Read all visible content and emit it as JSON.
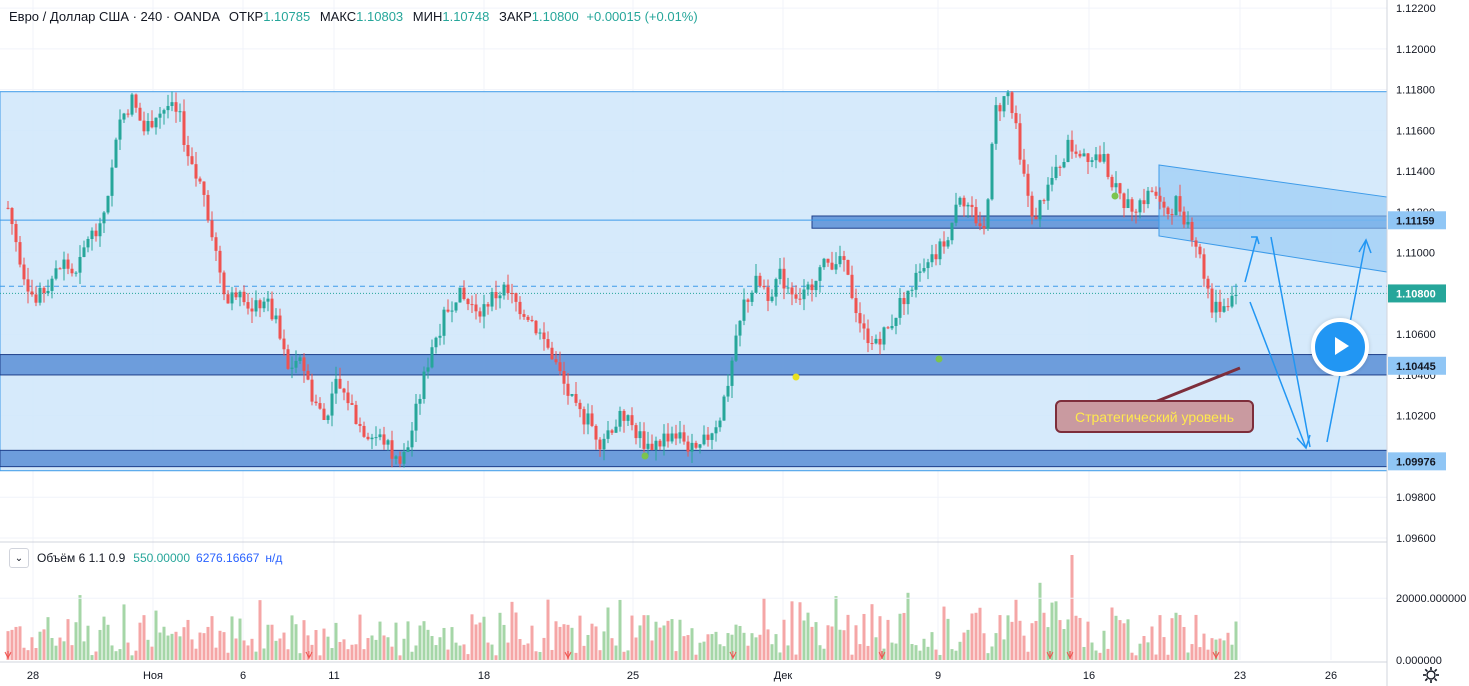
{
  "header": {
    "symbol": "Евро / Доллар США · 240 · OANDA",
    "open_label": "ОТКР",
    "open": "1.10785",
    "high_label": "МАКС",
    "high": "1.10803",
    "low_label": "МИН",
    "low": "1.10748",
    "close_label": "ЗАКР",
    "close": "1.10800",
    "change": "+0.00015 (+0.01%)"
  },
  "volume_header": {
    "title": "Объём 6 1.1 0.9",
    "value_green": "550.00000",
    "value_blue": "6276.16667",
    "na": "н/д"
  },
  "annotation": {
    "text": "Стратегический уровень"
  },
  "colors": {
    "up": "#26a69a",
    "down": "#ef5350",
    "zone": "#cfe6fa",
    "band": "#5b8fd6",
    "accent": "#2196f3",
    "note_bg": "#c99aa0",
    "note_text": "#ffe94d"
  },
  "chart_data": {
    "type": "candlestick",
    "symbol": "EURUSD",
    "timeframe": "240",
    "price_axis": {
      "ticks": [
        "1.12200",
        "1.12000",
        "1.11800",
        "1.11600",
        "1.11400",
        "1.11200",
        "1.11000",
        "1.10800",
        "1.10600",
        "1.10400",
        "1.10200",
        "1.10000",
        "1.09800",
        "1.09600"
      ],
      "ylim": [
        1.0959,
        1.1224
      ],
      "highlighted_labels": [
        "1.11159",
        "1.10800",
        "1.10445",
        "1.09976"
      ]
    },
    "time_axis": {
      "ticks": [
        "28",
        "Ноя",
        "6",
        "11",
        "18",
        "25",
        "Дек",
        "9",
        "16",
        "23",
        "26"
      ]
    },
    "levels": {
      "range_top": 1.1179,
      "range_bottom": 1.0993,
      "resistance_band": [
        1.1112,
        1.1118
      ],
      "support_band_mid": [
        1.104,
        1.105
      ],
      "support_band_low": [
        1.0995,
        1.1003
      ],
      "last_price": 1.108,
      "prev_close_dashed": 1.10835
    },
    "close_path": [
      [
        0,
        1.1122
      ],
      [
        4,
        1.109
      ],
      [
        7,
        1.1075
      ],
      [
        10,
        1.1085
      ],
      [
        14,
        1.1095
      ],
      [
        17,
        1.1088
      ],
      [
        20,
        1.1108
      ],
      [
        23,
        1.111
      ],
      [
        26,
        1.114
      ],
      [
        28,
        1.1165
      ],
      [
        31,
        1.1175
      ],
      [
        34,
        1.116
      ],
      [
        37,
        1.1168
      ],
      [
        40,
        1.1172
      ],
      [
        43,
        1.1165
      ],
      [
        46,
        1.114
      ],
      [
        49,
        1.113
      ],
      [
        52,
        1.11
      ],
      [
        55,
        1.1075
      ],
      [
        58,
        1.1085
      ],
      [
        61,
        1.107
      ],
      [
        64,
        1.1078
      ],
      [
        67,
        1.1065
      ],
      [
        70,
        1.1042
      ],
      [
        73,
        1.105
      ],
      [
        76,
        1.103
      ],
      [
        79,
        1.1018
      ],
      [
        82,
        1.1035
      ],
      [
        85,
        1.1028
      ],
      [
        88,
        1.1015
      ],
      [
        91,
        1.101
      ],
      [
        94,
        1.1008
      ],
      [
        97,
        1.0998
      ],
      [
        100,
        1.1005
      ],
      [
        103,
        1.103
      ],
      [
        106,
        1.1055
      ],
      [
        109,
        1.1068
      ],
      [
        112,
        1.108
      ],
      [
        115,
        1.1075
      ],
      [
        118,
        1.1072
      ],
      [
        121,
        1.1078
      ],
      [
        124,
        1.1082
      ],
      [
        127,
        1.1075
      ],
      [
        130,
        1.107
      ],
      [
        133,
        1.106
      ],
      [
        136,
        1.105
      ],
      [
        139,
        1.1035
      ],
      [
        142,
        1.1022
      ],
      [
        145,
        1.1018
      ],
      [
        148,
        1.1008
      ],
      [
        151,
        1.1015
      ],
      [
        154,
        1.102
      ],
      [
        157,
        1.1012
      ],
      [
        160,
        1.1005
      ],
      [
        163,
        1.1008
      ],
      [
        166,
        1.1012
      ],
      [
        169,
        1.1008
      ],
      [
        172,
        1.1
      ],
      [
        175,
        1.101
      ],
      [
        178,
        1.102
      ],
      [
        181,
        1.1045
      ],
      [
        184,
        1.1075
      ],
      [
        187,
        1.1085
      ],
      [
        190,
        1.108
      ],
      [
        193,
        1.1088
      ],
      [
        196,
        1.1082
      ],
      [
        199,
        1.1078
      ],
      [
        202,
        1.109
      ],
      [
        205,
        1.1095
      ],
      [
        208,
        1.1098
      ],
      [
        211,
        1.108
      ],
      [
        214,
        1.106
      ],
      [
        217,
        1.1058
      ],
      [
        220,
        1.1062
      ],
      [
        223,
        1.1075
      ],
      [
        226,
        1.1085
      ],
      [
        229,
        1.109
      ],
      [
        232,
        1.1098
      ],
      [
        235,
        1.111
      ],
      [
        238,
        1.113
      ],
      [
        241,
        1.112
      ],
      [
        244,
        1.111
      ],
      [
        247,
        1.117
      ],
      [
        250,
        1.1178
      ],
      [
        253,
        1.115
      ],
      [
        256,
        1.1115
      ],
      [
        259,
        1.1128
      ],
      [
        262,
        1.114
      ],
      [
        265,
        1.1152
      ],
      [
        268,
        1.115
      ],
      [
        271,
        1.1148
      ],
      [
        274,
        1.1145
      ],
      [
        277,
        1.113
      ],
      [
        280,
        1.1122
      ],
      [
        283,
        1.1125
      ],
      [
        286,
        1.113
      ],
      [
        289,
        1.1118
      ],
      [
        292,
        1.1125
      ],
      [
        295,
        1.1115
      ],
      [
        298,
        1.11
      ],
      [
        301,
        1.1072
      ],
      [
        304,
        1.1075
      ],
      [
        307,
        1.108
      ]
    ],
    "volume": {
      "ticks": [
        "20000.000000",
        "0.000000"
      ],
      "max": 34000
    }
  }
}
